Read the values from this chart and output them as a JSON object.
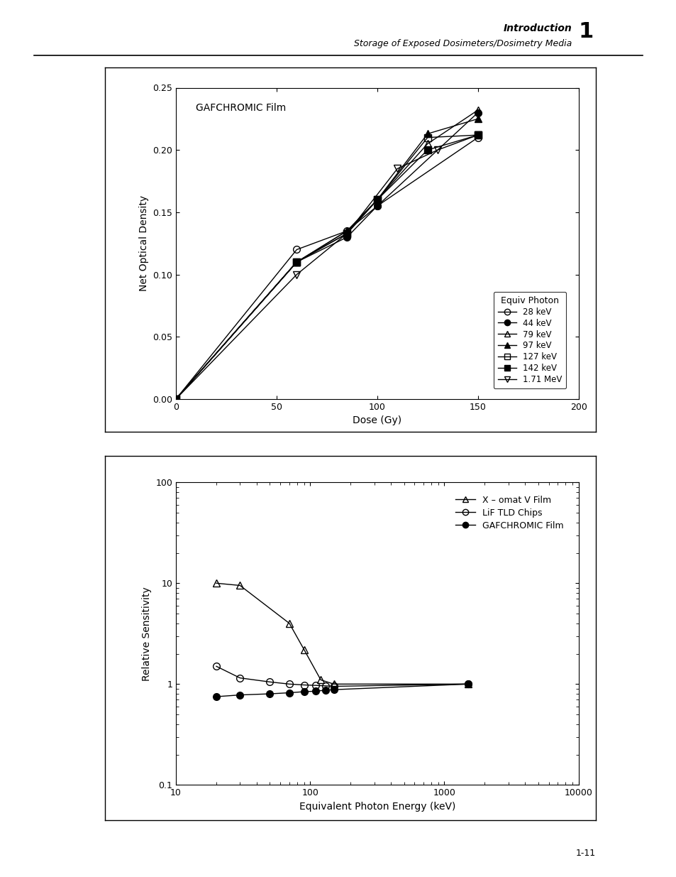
{
  "page_background": "#ffffff",
  "header_italic": "Introduction",
  "header_subtitle": "Storage of Exposed Dosimeters/Dosimetry Media",
  "header_number": "1",
  "footer": "1-11",
  "plot1": {
    "title": "GAFCHROMIC Film",
    "xlabel": "Dose (Gy)",
    "ylabel": "Net Optical Density",
    "xlim": [
      0,
      200
    ],
    "ylim": [
      0.0,
      0.25
    ],
    "yticks": [
      0.0,
      0.05,
      0.1,
      0.15,
      0.2,
      0.25
    ],
    "xticks": [
      0,
      50,
      100,
      150,
      200
    ],
    "series": [
      {
        "label": "28 keV",
        "marker": "o",
        "fillstyle": "none",
        "x": [
          0,
          60,
          85,
          100,
          150
        ],
        "y": [
          0.0,
          0.12,
          0.135,
          0.155,
          0.21
        ]
      },
      {
        "label": "44 keV",
        "marker": "o",
        "fillstyle": "full",
        "x": [
          0,
          60,
          85,
          100,
          150
        ],
        "y": [
          0.0,
          0.11,
          0.13,
          0.155,
          0.23
        ]
      },
      {
        "label": "79 keV",
        "marker": "^",
        "fillstyle": "none",
        "x": [
          0,
          60,
          85,
          100,
          125,
          150
        ],
        "y": [
          0.0,
          0.11,
          0.135,
          0.16,
          0.205,
          0.232
        ]
      },
      {
        "label": "97 keV",
        "marker": "^",
        "fillstyle": "full",
        "x": [
          0,
          60,
          85,
          100,
          125,
          150
        ],
        "y": [
          0.0,
          0.11,
          0.135,
          0.16,
          0.213,
          0.225
        ]
      },
      {
        "label": "127 keV",
        "marker": "s",
        "fillstyle": "none",
        "x": [
          0,
          60,
          85,
          100,
          125,
          150
        ],
        "y": [
          0.0,
          0.11,
          0.133,
          0.16,
          0.21,
          0.212
        ]
      },
      {
        "label": "142 keV",
        "marker": "s",
        "fillstyle": "full",
        "x": [
          0,
          60,
          85,
          100,
          125,
          150
        ],
        "y": [
          0.0,
          0.11,
          0.133,
          0.16,
          0.2,
          0.212
        ]
      },
      {
        "label": "1.71 MeV",
        "marker": "v",
        "fillstyle": "none",
        "x": [
          0,
          60,
          85,
          110,
          130,
          150
        ],
        "y": [
          0.0,
          0.1,
          0.133,
          0.185,
          0.2,
          0.212
        ]
      }
    ],
    "legend_title": "Equiv Photon"
  },
  "plot2": {
    "xlabel": "Equivalent Photon Energy (keV)",
    "ylabel": "Relative Sensitivity",
    "xlim": [
      10,
      10000
    ],
    "ylim": [
      0.1,
      100
    ],
    "series": [
      {
        "label": "X – omat V Film",
        "marker": "^",
        "fillstyle": "none",
        "x": [
          20,
          30,
          70,
          90,
          120,
          150,
          1500
        ],
        "y": [
          10.0,
          9.5,
          4.0,
          2.2,
          1.1,
          1.0,
          1.0
        ]
      },
      {
        "label": "LiF TLD Chips",
        "marker": "o",
        "fillstyle": "none",
        "x": [
          20,
          30,
          50,
          70,
          90,
          110,
          130,
          150,
          1500
        ],
        "y": [
          1.5,
          1.15,
          1.05,
          1.0,
          0.98,
          0.97,
          0.96,
          0.95,
          1.0
        ]
      },
      {
        "label": "GAFCHROMIC Film",
        "marker": "o",
        "fillstyle": "full",
        "x": [
          20,
          30,
          50,
          70,
          90,
          110,
          130,
          150,
          1500
        ],
        "y": [
          0.75,
          0.78,
          0.8,
          0.82,
          0.84,
          0.85,
          0.87,
          0.88,
          1.0
        ]
      }
    ]
  }
}
